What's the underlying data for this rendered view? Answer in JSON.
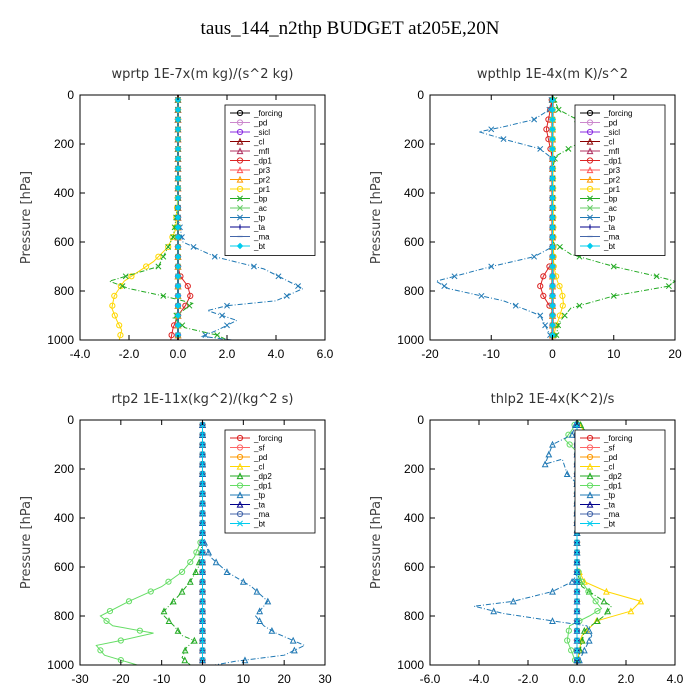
{
  "title": "taus_144_n2thp  BUDGET at205E,20N",
  "chart_data": [
    {
      "type": "line",
      "title": "wprtp   1E-7x(m kg)/(s^2 kg)",
      "ylabel": "Pressure [hPa]",
      "xlim": [
        -4.0,
        6.0
      ],
      "ylim": [
        1000,
        0
      ],
      "xticks": [
        "-4.0",
        "-2.0",
        "0.0",
        "2.0",
        "4.0",
        "6.0"
      ],
      "yticks": [
        "0",
        "200",
        "400",
        "600",
        "800",
        "1000"
      ],
      "grid": false,
      "legend": "top-right",
      "series": [
        {
          "name": "_forcing",
          "color": "#000000",
          "x": [
            0,
            0
          ],
          "y": [
            0,
            1000
          ]
        },
        {
          "name": "_pd",
          "color": "#cc88cc",
          "x": [
            0,
            0
          ],
          "y": [
            0,
            1000
          ]
        },
        {
          "name": "_sicl",
          "color": "#8a2be2",
          "x": [
            0,
            0
          ],
          "y": [
            0,
            1000
          ]
        },
        {
          "name": "_cl",
          "color": "#8b0000",
          "x": [
            0,
            0
          ],
          "y": [
            0,
            1000
          ]
        },
        {
          "name": "_mfl",
          "color": "#b03060",
          "x": [
            0,
            0
          ],
          "y": [
            0,
            1000
          ]
        },
        {
          "name": "_dp1",
          "color": "#dd2222",
          "x": [
            0,
            0,
            0,
            0.1,
            0.4,
            0.5,
            0.3,
            0,
            -0.2,
            -0.3
          ],
          "y": [
            0,
            600,
            700,
            740,
            780,
            820,
            860,
            900,
            950,
            1000
          ]
        },
        {
          "name": "_pr3",
          "color": "#ff5555",
          "x": [
            0,
            0
          ],
          "y": [
            0,
            1000
          ]
        },
        {
          "name": "_pr2",
          "color": "#ff9900",
          "x": [
            0,
            0
          ],
          "y": [
            0,
            1000
          ]
        },
        {
          "name": "_pr1",
          "color": "#ffd700",
          "x": [
            0,
            0,
            -0.1,
            -0.4,
            -1.0,
            -2.2,
            -2.6,
            -2.7,
            -2.5,
            -2.3,
            -2.4
          ],
          "y": [
            0,
            400,
            550,
            620,
            680,
            760,
            820,
            870,
            920,
            960,
            1000
          ]
        },
        {
          "name": "_bp",
          "color": "#22aa22",
          "x": [
            0,
            0,
            -0.2,
            -0.8,
            -2.8,
            -2.0,
            -0.6,
            0.6,
            -0.2,
            0.3,
            1.6,
            2.0
          ],
          "y": [
            0,
            450,
            580,
            700,
            760,
            790,
            820,
            850,
            910,
            950,
            980,
            1000
          ]
        },
        {
          "name": "_ac",
          "color": "#66cc66",
          "x": [
            0,
            0
          ],
          "y": [
            0,
            1000
          ]
        },
        {
          "name": "_tp",
          "color": "#1f78b4",
          "x": [
            0,
            0,
            0.2,
            1.5,
            3.5,
            5.1,
            4.0,
            2.0,
            1.2,
            2.4,
            1.6,
            1.0,
            2.2
          ],
          "y": [
            0,
            500,
            600,
            660,
            710,
            790,
            840,
            860,
            880,
            920,
            960,
            985,
            1000
          ]
        },
        {
          "name": "_ta",
          "color": "#00008b",
          "x": [
            0,
            0
          ],
          "y": [
            0,
            1000
          ]
        },
        {
          "name": "_ma",
          "color": "#4466aa",
          "x": [
            0,
            0
          ],
          "y": [
            0,
            1000
          ]
        },
        {
          "name": "_bt",
          "color": "#00ccee",
          "x": [
            0,
            0
          ],
          "y": [
            0,
            1000
          ]
        }
      ]
    },
    {
      "type": "line",
      "title": "wpthlp   1E-4x(m K)/s^2",
      "ylabel": "Pressure [hPa]",
      "xlim": [
        -20,
        20
      ],
      "ylim": [
        1000,
        0
      ],
      "xticks": [
        "-20",
        "-10",
        "0",
        "10",
        "20"
      ],
      "yticks": [
        "0",
        "200",
        "400",
        "600",
        "800",
        "1000"
      ],
      "grid": false,
      "legend": "top-right",
      "series": [
        {
          "name": "_forcing",
          "color": "#000000",
          "x": [
            0,
            0
          ],
          "y": [
            0,
            1000
          ]
        },
        {
          "name": "_pd",
          "color": "#cc88cc",
          "x": [
            0,
            0
          ],
          "y": [
            0,
            1000
          ]
        },
        {
          "name": "_sicl",
          "color": "#8a2be2",
          "x": [
            0,
            0
          ],
          "y": [
            0,
            1000
          ]
        },
        {
          "name": "_cl",
          "color": "#8b0000",
          "x": [
            0,
            0
          ],
          "y": [
            0,
            1000
          ]
        },
        {
          "name": "_mfl",
          "color": "#b03060",
          "x": [
            0,
            0
          ],
          "y": [
            0,
            1000
          ]
        },
        {
          "name": "_dp1",
          "color": "#dd2222",
          "x": [
            0,
            -0.5,
            -1.0,
            -0.5,
            0,
            0,
            -1.5,
            -2.0,
            -1.5,
            0,
            0
          ],
          "y": [
            0,
            80,
            140,
            200,
            260,
            680,
            740,
            780,
            820,
            880,
            1000
          ]
        },
        {
          "name": "_pr3",
          "color": "#ff5555",
          "x": [
            0,
            0
          ],
          "y": [
            0,
            1000
          ]
        },
        {
          "name": "_pr2",
          "color": "#ff9900",
          "x": [
            0,
            0
          ],
          "y": [
            0,
            1000
          ]
        },
        {
          "name": "_pr1",
          "color": "#ffd700",
          "x": [
            0,
            0.2,
            0.8,
            1.5,
            1.8,
            1.2,
            0.5,
            0
          ],
          "y": [
            0,
            700,
            760,
            800,
            850,
            900,
            950,
            1000
          ]
        },
        {
          "name": "_bp",
          "color": "#22aa22",
          "x": [
            0,
            1.0,
            4.0,
            6.0,
            4.0,
            0.5,
            0,
            0,
            3.0,
            10.0,
            17.0,
            20.0,
            19.0,
            10.0,
            3.0,
            1.0,
            0.5
          ],
          "y": [
            0,
            60,
            100,
            150,
            200,
            250,
            300,
            600,
            650,
            700,
            740,
            760,
            780,
            820,
            870,
            930,
            1000
          ]
        },
        {
          "name": "_ac",
          "color": "#66cc66",
          "x": [
            0,
            0
          ],
          "y": [
            0,
            1000
          ]
        },
        {
          "name": "_tp",
          "color": "#1f78b4",
          "x": [
            0,
            -0.5,
            -3.0,
            -8.0,
            -12.0,
            -8.0,
            -2.0,
            0,
            0,
            -3.0,
            -10.0,
            -16.0,
            -19.0,
            -17.0,
            -8.0,
            -2.0,
            0
          ],
          "y": [
            0,
            60,
            100,
            130,
            150,
            180,
            220,
            260,
            620,
            660,
            700,
            740,
            760,
            790,
            840,
            900,
            1000
          ]
        },
        {
          "name": "_ta",
          "color": "#00008b",
          "x": [
            0,
            0
          ],
          "y": [
            0,
            1000
          ]
        },
        {
          "name": "_ma",
          "color": "#4466aa",
          "x": [
            0,
            0
          ],
          "y": [
            0,
            1000
          ]
        },
        {
          "name": "_bt",
          "color": "#00ccee",
          "x": [
            0,
            0
          ],
          "y": [
            0,
            1000
          ]
        }
      ]
    },
    {
      "type": "line",
      "title": "rtp2   1E-11x(kg^2)/(kg^2 s)",
      "ylabel": "Pressure [hPa]",
      "xlim": [
        -30,
        30
      ],
      "ylim": [
        1000,
        0
      ],
      "xticks": [
        "-30",
        "-20",
        "-10",
        "0",
        "10",
        "20",
        "30"
      ],
      "yticks": [
        "0",
        "200",
        "400",
        "600",
        "800",
        "1000"
      ],
      "grid": false,
      "legend": "top-right",
      "series": [
        {
          "name": "_forcing",
          "color": "#dd2222",
          "x": [
            0,
            0
          ],
          "y": [
            0,
            1000
          ]
        },
        {
          "name": "_sf",
          "color": "#ff6666",
          "x": [
            0,
            0
          ],
          "y": [
            0,
            1000
          ]
        },
        {
          "name": "_pd",
          "color": "#ff9900",
          "x": [
            0,
            0
          ],
          "y": [
            0,
            1000
          ]
        },
        {
          "name": "_cl",
          "color": "#ffd700",
          "x": [
            0,
            0
          ],
          "y": [
            0,
            1000
          ]
        },
        {
          "name": "_dp2",
          "color": "#22aa22",
          "x": [
            0,
            0,
            -1.0,
            -3.0,
            -6.0,
            -10.0,
            -7.0,
            -5.0,
            -2.0,
            -4.0,
            -5.0,
            -3.0
          ],
          "y": [
            0,
            500,
            600,
            660,
            720,
            790,
            840,
            880,
            900,
            930,
            970,
            1000
          ]
        },
        {
          "name": "_dp1",
          "color": "#66dd66",
          "x": [
            0,
            0,
            -2.0,
            -5.0,
            -10.0,
            -18.0,
            -25.0,
            -22.0,
            -12.0,
            -20.0,
            -26.0,
            -24.0,
            -16.0
          ],
          "y": [
            0,
            480,
            560,
            620,
            680,
            740,
            800,
            840,
            870,
            900,
            920,
            960,
            1000
          ]
        },
        {
          "name": "_tp",
          "color": "#1f78b4",
          "x": [
            0,
            0,
            2.0,
            6.0,
            12.0,
            16.0,
            13.0,
            15.0,
            18.0,
            25.0,
            20.0,
            8.0,
            3.0
          ],
          "y": [
            0,
            480,
            560,
            620,
            680,
            740,
            800,
            840,
            870,
            920,
            960,
            985,
            1000
          ]
        },
        {
          "name": "_ta",
          "color": "#00008b",
          "x": [
            0,
            0
          ],
          "y": [
            0,
            1000
          ]
        },
        {
          "name": "_ma",
          "color": "#4466aa",
          "x": [
            0,
            0
          ],
          "y": [
            0,
            1000
          ]
        },
        {
          "name": "_bt",
          "color": "#00ccee",
          "x": [
            0,
            0
          ],
          "y": [
            0,
            1000
          ]
        }
      ]
    },
    {
      "type": "line",
      "title": "thlp2   1E-4x(K^2)/s",
      "ylabel": "Pressure [hPa]",
      "xlim": [
        -6.0,
        4.0
      ],
      "ylim": [
        1000,
        0
      ],
      "xticks": [
        "-6.0",
        "-4.0",
        "-2.0",
        "0.0",
        "2.0",
        "4.0"
      ],
      "yticks": [
        "0",
        "200",
        "400",
        "600",
        "800",
        "1000"
      ],
      "grid": false,
      "legend": "top-right",
      "series": [
        {
          "name": "_forcing",
          "color": "#dd2222",
          "x": [
            0,
            0
          ],
          "y": [
            0,
            1000
          ]
        },
        {
          "name": "_sf",
          "color": "#ff6666",
          "x": [
            0,
            0
          ],
          "y": [
            0,
            1000
          ]
        },
        {
          "name": "_pd",
          "color": "#ff9900",
          "x": [
            0,
            0
          ],
          "y": [
            0,
            1000
          ]
        },
        {
          "name": "_cl",
          "color": "#ffd700",
          "x": [
            0,
            0.5,
            0.8,
            0.4,
            0,
            0,
            0.3,
            1.2,
            2.6,
            2.2,
            0.8,
            0.2,
            0
          ],
          "y": [
            0,
            80,
            140,
            200,
            260,
            600,
            660,
            700,
            740,
            780,
            820,
            880,
            1000
          ]
        },
        {
          "name": "_dp2",
          "color": "#22aa22",
          "x": [
            0,
            0.6,
            0.9,
            0.5,
            0,
            0,
            0.2,
            0.8,
            1.4,
            1.1,
            0.3,
            0
          ],
          "y": [
            0,
            80,
            150,
            200,
            260,
            620,
            680,
            720,
            760,
            800,
            860,
            1000
          ]
        },
        {
          "name": "_dp1",
          "color": "#66dd66",
          "x": [
            0,
            -0.2,
            -0.5,
            0,
            0,
            0.2,
            0.6,
            1.0,
            0.5,
            -0.3,
            -0.4,
            0
          ],
          "y": [
            0,
            40,
            80,
            130,
            600,
            660,
            720,
            770,
            800,
            840,
            900,
            1000
          ]
        },
        {
          "name": "_tp",
          "color": "#1f78b4",
          "x": [
            0,
            -0.2,
            -1.0,
            -1.3,
            -0.6,
            -0.4,
            0,
            0,
            -0.2,
            -1.0,
            -2.6,
            -4.2,
            -3.0,
            -1.0,
            0.4,
            0.6,
            0
          ],
          "y": [
            0,
            60,
            100,
            180,
            160,
            220,
            260,
            630,
            660,
            700,
            740,
            760,
            790,
            820,
            840,
            880,
            1000
          ]
        },
        {
          "name": "_ta",
          "color": "#00008b",
          "x": [
            0,
            0
          ],
          "y": [
            0,
            1000
          ]
        },
        {
          "name": "_ma",
          "color": "#4466aa",
          "x": [
            0,
            0
          ],
          "y": [
            0,
            1000
          ]
        },
        {
          "name": "_bt",
          "color": "#00ccee",
          "x": [
            0,
            0
          ],
          "y": [
            0,
            1000
          ]
        }
      ]
    }
  ]
}
